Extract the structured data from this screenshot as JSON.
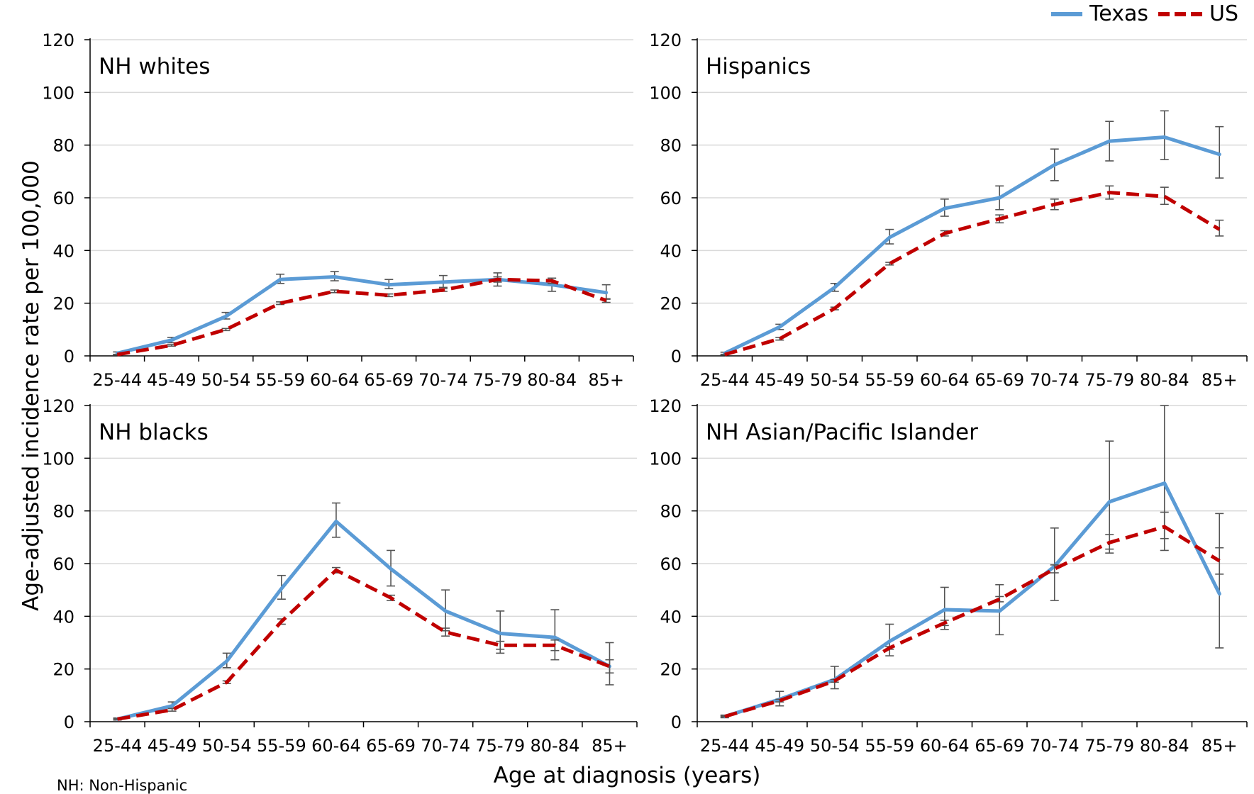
{
  "legend": {
    "texas": "Texas",
    "us": "US"
  },
  "colors": {
    "texas": "#5b9bd5",
    "us": "#c00000",
    "errorbar": "#555555",
    "grid": "#d9d9d9"
  },
  "y_axis_label": "Age-adjusted incidence rate per 100,000",
  "x_axis_label": "Age at diagnosis (years)",
  "footnote": "NH: Non-Hispanic",
  "chart_data": [
    {
      "type": "line",
      "panel_label": "NH whites",
      "categories": [
        "25-44",
        "45-49",
        "50-54",
        "55-59",
        "60-64",
        "65-69",
        "70-74",
        "75-79",
        "80-84",
        "85+"
      ],
      "ylim": [
        0,
        120
      ],
      "yticks": [
        0,
        20,
        40,
        60,
        80,
        100,
        120
      ],
      "grid": true,
      "series": [
        {
          "name": "Texas",
          "values": [
            1,
            6,
            15,
            29,
            30,
            27,
            28,
            29,
            27,
            24
          ],
          "error_low": [
            0.5,
            5,
            14,
            27.5,
            28.5,
            25.5,
            26,
            26.5,
            24.5,
            21.5
          ],
          "error_high": [
            1.5,
            7,
            16.5,
            31,
            32,
            29,
            30.5,
            31.5,
            29.5,
            27
          ]
        },
        {
          "name": "US",
          "values": [
            0.5,
            4,
            10,
            20,
            24.5,
            23,
            25,
            29,
            28.5,
            21
          ],
          "error_low": [
            0.4,
            3.7,
            9.6,
            19.5,
            24,
            22.5,
            24.5,
            28,
            27.5,
            20.3
          ],
          "error_high": [
            0.6,
            4.3,
            10.4,
            20.5,
            25,
            23.5,
            25.5,
            30,
            29.5,
            21.7
          ]
        }
      ]
    },
    {
      "type": "line",
      "panel_label": "Hispanics",
      "categories": [
        "25-44",
        "45-49",
        "50-54",
        "55-59",
        "60-64",
        "65-69",
        "70-74",
        "75-79",
        "80-84",
        "85+"
      ],
      "ylim": [
        0,
        120
      ],
      "yticks": [
        0,
        20,
        40,
        60,
        80,
        100,
        120
      ],
      "grid": true,
      "series": [
        {
          "name": "Texas",
          "values": [
            1,
            11,
            26,
            45,
            56,
            60,
            72.5,
            81.5,
            83,
            76.5
          ],
          "error_low": [
            0.6,
            10,
            24.5,
            42.5,
            53,
            55.5,
            66.5,
            74,
            74.5,
            67.5
          ],
          "error_high": [
            1.4,
            12,
            27.5,
            48,
            59.5,
            64.5,
            78.5,
            89,
            93,
            87
          ]
        },
        {
          "name": "US",
          "values": [
            0.5,
            6.5,
            18,
            35,
            46.5,
            52,
            57.5,
            62,
            60.5,
            48
          ],
          "error_low": [
            0.4,
            6,
            17.5,
            34.5,
            45.5,
            50.5,
            55.5,
            59.5,
            57.5,
            45.5
          ],
          "error_high": [
            0.6,
            7,
            18.5,
            35.5,
            47.5,
            53.5,
            59.5,
            64.5,
            64,
            51.5
          ]
        }
      ]
    },
    {
      "type": "line",
      "panel_label": "NH blacks",
      "categories": [
        "25-44",
        "45-49",
        "50-54",
        "55-59",
        "60-64",
        "65-69",
        "70-74",
        "75-79",
        "80-84",
        "85+"
      ],
      "ylim": [
        0,
        120
      ],
      "yticks": [
        0,
        20,
        40,
        60,
        80,
        100,
        120
      ],
      "grid": true,
      "series": [
        {
          "name": "Texas",
          "values": [
            1,
            6,
            23,
            50.5,
            76,
            58,
            42,
            33.5,
            32,
            21
          ],
          "error_low": [
            0.6,
            5,
            20.5,
            46.5,
            70,
            51.5,
            34.5,
            26,
            23.5,
            14
          ],
          "error_high": [
            1.4,
            7.5,
            26,
            55.5,
            83,
            65,
            50,
            42,
            42.5,
            30
          ]
        },
        {
          "name": "US",
          "values": [
            1,
            4.5,
            15,
            38,
            57.5,
            47,
            34,
            29,
            29,
            21
          ],
          "error_low": [
            0.8,
            4,
            14.5,
            37,
            56.5,
            46,
            32.5,
            27.5,
            27,
            18.5
          ],
          "error_high": [
            1.2,
            5,
            15.5,
            39,
            58.5,
            48,
            35.5,
            30.5,
            31,
            23.5
          ]
        }
      ]
    },
    {
      "type": "line",
      "panel_label": "NH Asian/Pacific Islander",
      "categories": [
        "25-44",
        "45-49",
        "50-54",
        "55-59",
        "60-64",
        "65-69",
        "70-74",
        "75-79",
        "80-84",
        "85+"
      ],
      "ylim": [
        0,
        120
      ],
      "yticks": [
        0,
        20,
        40,
        60,
        80,
        100,
        120
      ],
      "grid": true,
      "series": [
        {
          "name": "Texas",
          "values": [
            2,
            8.5,
            16,
            30.5,
            42.5,
            42,
            59,
            83.5,
            90.5,
            48.5
          ],
          "error_low": [
            1.5,
            6,
            12.5,
            25,
            35,
            33,
            46,
            64,
            65,
            28
          ],
          "error_high": [
            2.5,
            11.5,
            21,
            37,
            51,
            52,
            73.5,
            106.5,
            120,
            79
          ]
        },
        {
          "name": "US",
          "values": [
            2,
            8,
            15.5,
            28,
            37.5,
            46.5,
            58,
            68,
            74,
            61
          ],
          "error_low": [
            1.8,
            7.5,
            15,
            27.5,
            36.5,
            45.5,
            56.5,
            65.5,
            69.5,
            56
          ],
          "error_high": [
            2.2,
            8.5,
            16,
            28.5,
            38.5,
            47.5,
            59.5,
            71,
            79.5,
            66
          ]
        }
      ]
    }
  ]
}
